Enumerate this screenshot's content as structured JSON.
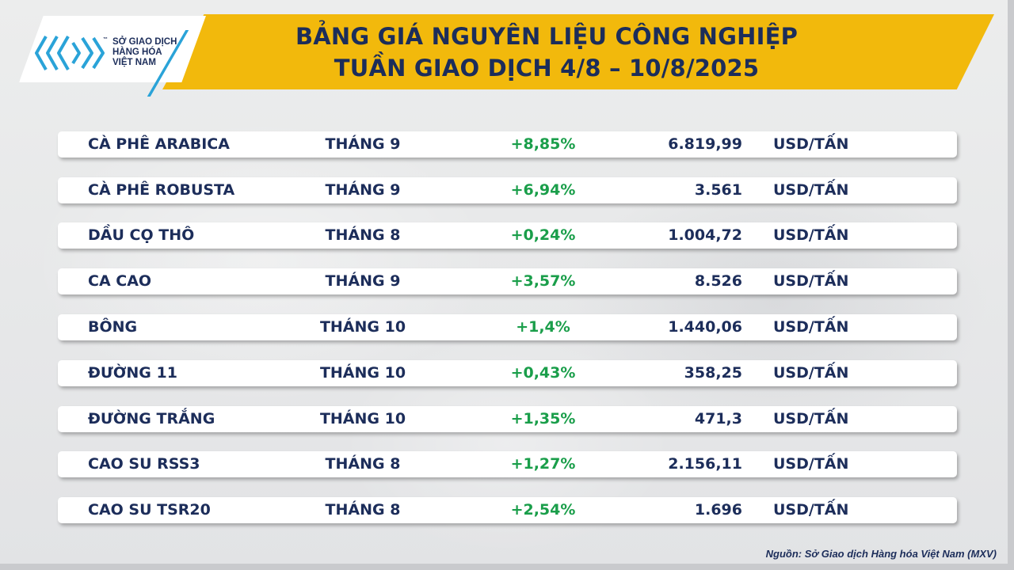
{
  "logo": {
    "line1": "SỞ GIAO DỊCH",
    "line2": "HÀNG HÓA",
    "line3": "VIỆT NAM",
    "tm": "™"
  },
  "title": {
    "line1": "BẢNG GIÁ NGUYÊN LIỆU CÔNG NGHIỆP",
    "line2": "TUẦN GIAO DỊCH 4/8 – 10/8/2025"
  },
  "colors": {
    "banner": "#f2b90c",
    "navy": "#1c2d5a",
    "positive": "#1a9e4a",
    "accent": "#2aa3d8"
  },
  "rows": [
    {
      "name": "CÀ PHÊ ARABICA",
      "month": "THÁNG 9",
      "change": "+8,85%",
      "price": "6.819,99",
      "unit": "USD/TẤN"
    },
    {
      "name": "CÀ PHÊ ROBUSTA",
      "month": "THÁNG 9",
      "change": "+6,94%",
      "price": "3.561",
      "unit": "USD/TẤN"
    },
    {
      "name": "DẦU CỌ THÔ",
      "month": "THÁNG 8",
      "change": "+0,24%",
      "price": "1.004,72",
      "unit": "USD/TẤN"
    },
    {
      "name": "CA CAO",
      "month": "THÁNG 9",
      "change": "+3,57%",
      "price": "8.526",
      "unit": "USD/TẤN"
    },
    {
      "name": "BÔNG",
      "month": "THÁNG 10",
      "change": "+1,4%",
      "price": "1.440,06",
      "unit": "USD/TẤN"
    },
    {
      "name": "ĐƯỜNG 11",
      "month": "THÁNG 10",
      "change": "+0,43%",
      "price": "358,25",
      "unit": "USD/TẤN"
    },
    {
      "name": "ĐƯỜNG TRẮNG",
      "month": "THÁNG 10",
      "change": "+1,35%",
      "price": "471,3",
      "unit": "USD/TẤN"
    },
    {
      "name": "CAO SU RSS3",
      "month": "THÁNG 8",
      "change": "+1,27%",
      "price": "2.156,11",
      "unit": "USD/TẤN"
    },
    {
      "name": "CAO SU TSR20",
      "month": "THÁNG 8",
      "change": "+2,54%",
      "price": "1.696",
      "unit": "USD/TẤN"
    }
  ],
  "source": "Nguồn: Sở Giao dịch Hàng hóa Việt Nam (MXV)"
}
